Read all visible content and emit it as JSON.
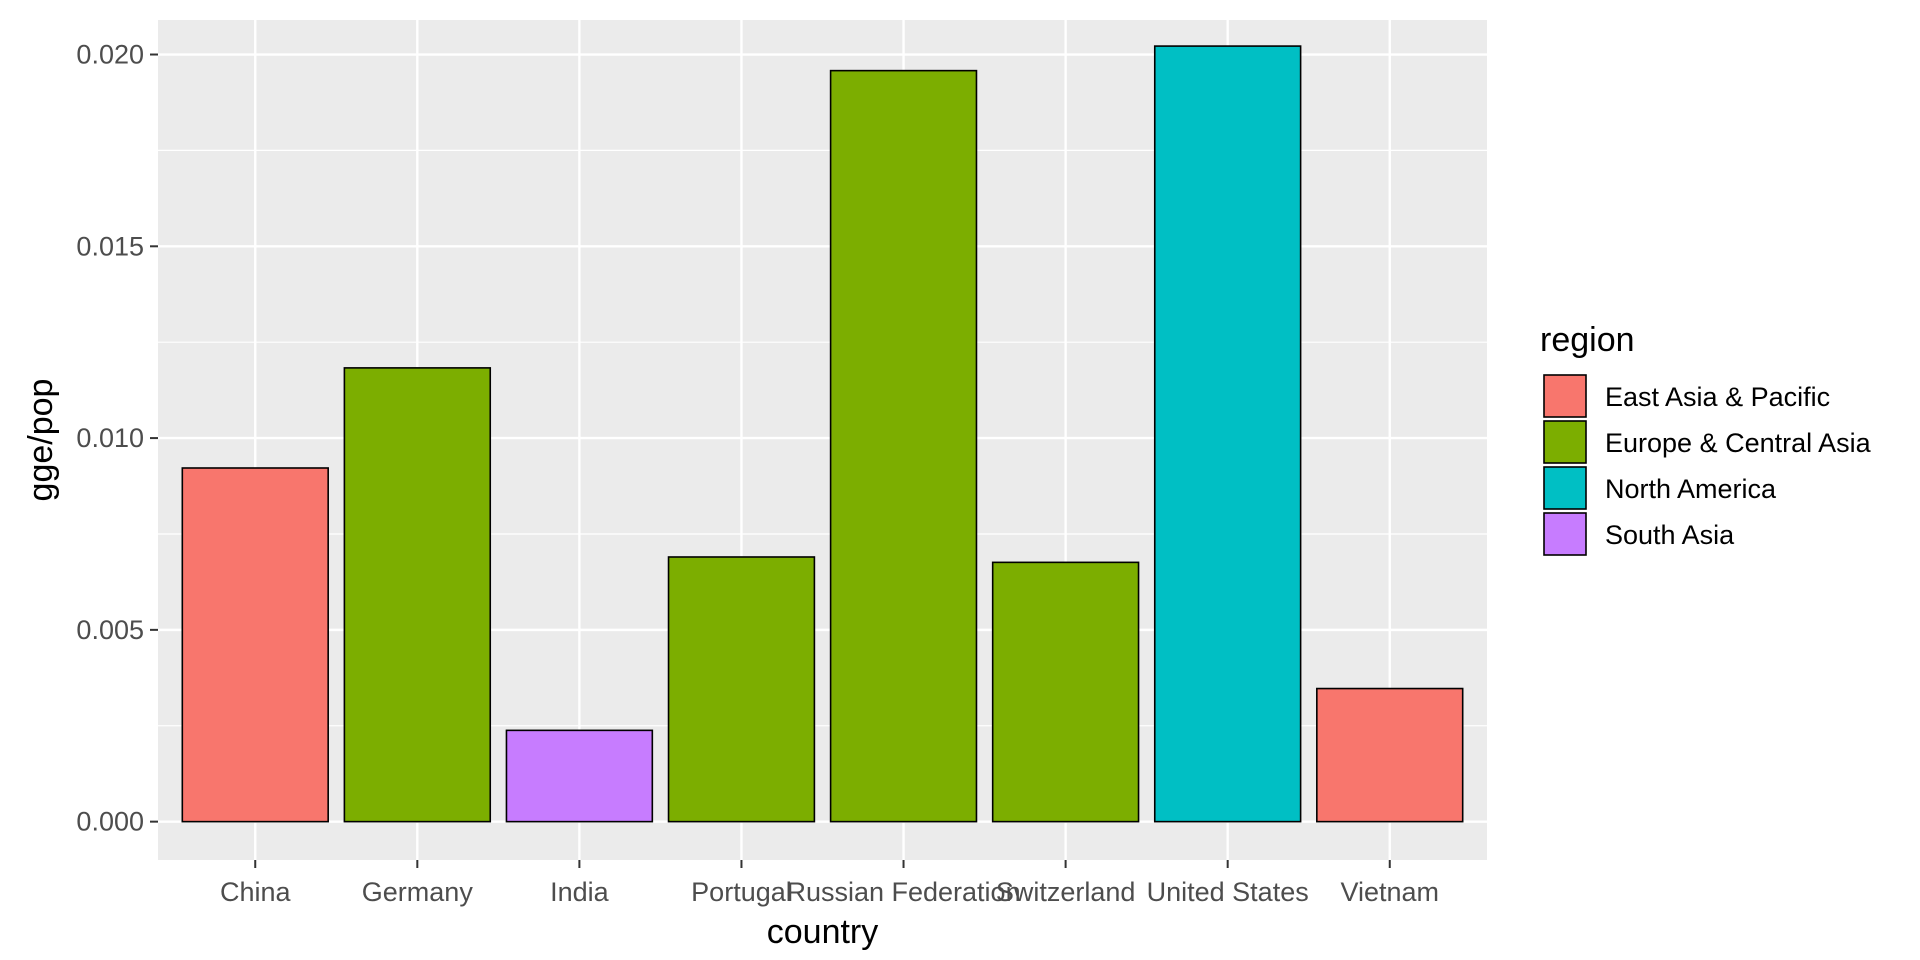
{
  "chart_data": {
    "type": "bar",
    "xlabel": "country",
    "ylabel": "gge/pop",
    "ylim": [
      -0.001,
      0.0209
    ],
    "yticks": [
      0.0,
      0.005,
      0.01,
      0.015,
      0.02
    ],
    "ytick_labels": [
      "0.000",
      "0.005",
      "0.010",
      "0.015",
      "0.020"
    ],
    "categories": [
      "China",
      "Germany",
      "India",
      "Portugal",
      "Russian Federation",
      "Switzerland",
      "United States",
      "Vietnam"
    ],
    "values": [
      0.00922,
      0.01183,
      0.00238,
      0.0069,
      0.01958,
      0.00676,
      0.02022,
      0.00347
    ],
    "bar_region": [
      "East Asia & Pacific",
      "Europe & Central Asia",
      "South Asia",
      "Europe & Central Asia",
      "Europe & Central Asia",
      "Europe & Central Asia",
      "North America",
      "East Asia & Pacific"
    ],
    "grid": true,
    "legend": {
      "title": "region",
      "placement": "right",
      "entries": [
        {
          "name": "East Asia & Pacific",
          "color": "#F8766D"
        },
        {
          "name": "Europe & Central Asia",
          "color": "#7CAE00"
        },
        {
          "name": "North America",
          "color": "#00BFC4"
        },
        {
          "name": "South Asia",
          "color": "#C77CFF"
        }
      ]
    },
    "colors": {
      "panel_background": "#EBEBEB",
      "grid": "#FFFFFF",
      "bar_outline": "#000000",
      "tick_text": "#4D4D4D",
      "tick_mark": "#333333"
    }
  }
}
